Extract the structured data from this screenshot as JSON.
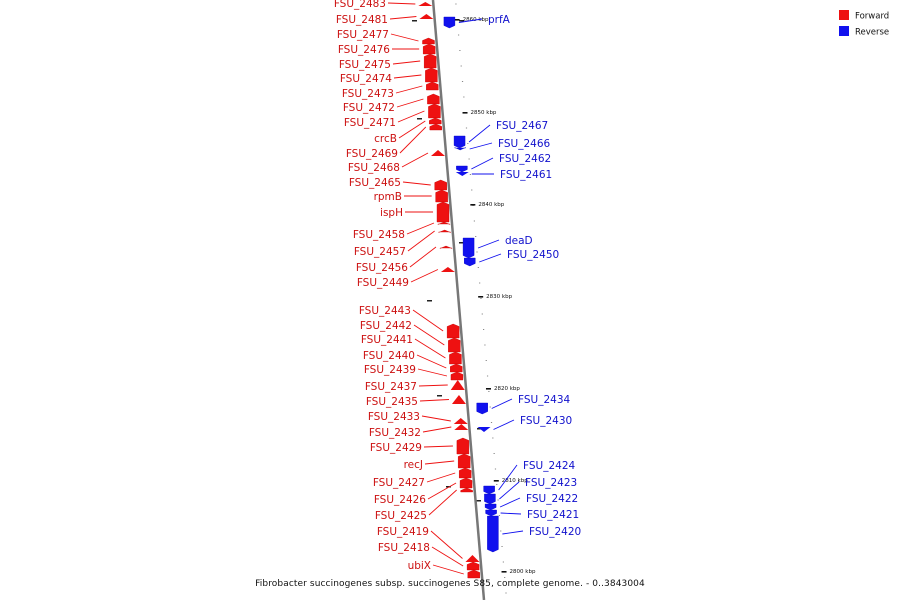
{
  "caption": "Fibrobacter succinogenes subsp. succinogenes S85, complete genome. - 0..3843004",
  "legend": [
    {
      "label": "Forward",
      "color": "#ee1111"
    },
    {
      "label": "Reverse",
      "color": "#1111ee"
    }
  ],
  "colors": {
    "forward": "#ee1111",
    "reverse": "#1111ee",
    "backbone": "#777777"
  },
  "scale_labels": [
    "2860 kbp",
    "2850 kbp",
    "2840 kbp",
    "2830 kbp",
    "2820 kbp",
    "2810 kbp",
    "2800 kbp"
  ],
  "forward_genes": [
    "FSU_2483",
    "FSU_2481",
    "FSU_2477",
    "FSU_2476",
    "FSU_2475",
    "FSU_2474",
    "FSU_2473",
    "FSU_2472",
    "FSU_2471",
    "crcB",
    "FSU_2469",
    "FSU_2468",
    "FSU_2465",
    "rpmB",
    "ispH",
    "FSU_2458",
    "FSU_2457",
    "FSU_2456",
    "FSU_2449",
    "FSU_2443",
    "FSU_2442",
    "FSU_2441",
    "FSU_2440",
    "FSU_2439",
    "FSU_2437",
    "FSU_2435",
    "FSU_2433",
    "FSU_2432",
    "FSU_2429",
    "recJ",
    "FSU_2427",
    "FSU_2426",
    "FSU_2425",
    "FSU_2419",
    "FSU_2418",
    "ubiX"
  ],
  "reverse_genes": [
    "prfA",
    "FSU_2467",
    "FSU_2466",
    "FSU_2462",
    "FSU_2461",
    "deaD",
    "FSU_2450",
    "FSU_2434",
    "FSU_2430",
    "FSU_2424",
    "FSU_2423",
    "FSU_2422",
    "FSU_2421",
    "FSU_2420"
  ]
}
